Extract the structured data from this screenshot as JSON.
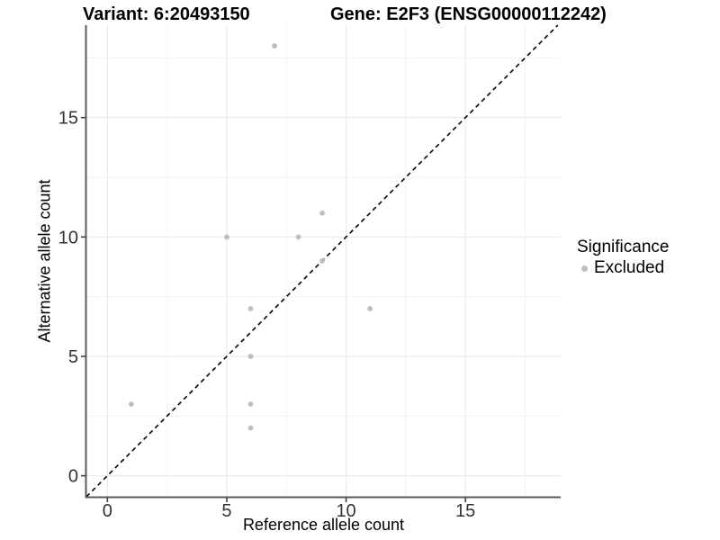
{
  "header": {
    "variant_title": "Variant: 6:20493150",
    "gene_title": "Gene: E2F3 (ENSG00000112242)"
  },
  "chart_data": {
    "type": "scatter",
    "xlabel": "Reference allele count",
    "ylabel": "Alternative allele count",
    "xlim": [
      -0.88,
      18.99
    ],
    "ylim": [
      -0.92,
      18.87
    ],
    "x_ticks": [
      0,
      5,
      10,
      15
    ],
    "y_ticks": [
      0,
      5,
      10,
      15
    ],
    "x_minor_ticks": [
      2.5,
      7.5,
      12.5,
      17.5
    ],
    "y_minor_ticks": [
      2.5,
      7.5,
      12.5,
      17.5
    ],
    "grid": "major and minor gridlines, white background",
    "legend_position": "right",
    "identity_line": {
      "slope": 1,
      "intercept": 0,
      "style": "dashed",
      "color": "#000000"
    },
    "series": [
      {
        "name": "Excluded",
        "color": "#bebebe",
        "points": [
          [
            1,
            3
          ],
          [
            5,
            10
          ],
          [
            6,
            2
          ],
          [
            6,
            3
          ],
          [
            6,
            5
          ],
          [
            6,
            7
          ],
          [
            7,
            18
          ],
          [
            8,
            10
          ],
          [
            9,
            9
          ],
          [
            9,
            11
          ],
          [
            11,
            7
          ]
        ]
      }
    ]
  },
  "legend": {
    "title": "Significance",
    "items": [
      {
        "label": "Excluded",
        "color": "#bebebe"
      }
    ]
  },
  "colors": {
    "point": "#bebebe",
    "axis_line": "#595959",
    "tick_mark": "#404040",
    "tick_label": "#333333",
    "grid_major": "#e7e7e7",
    "grid_minor": "#f2f2f2",
    "background": "#ffffff"
  }
}
